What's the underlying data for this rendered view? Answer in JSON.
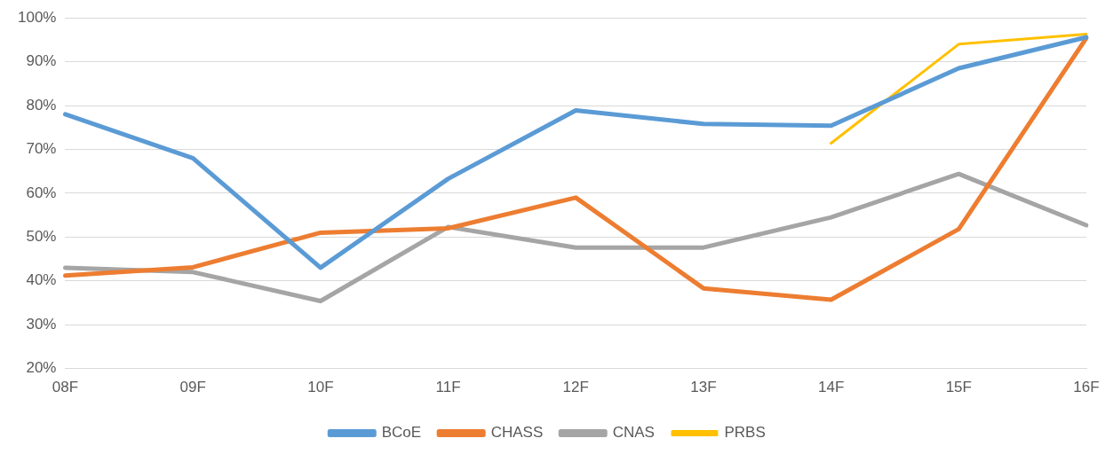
{
  "chart_data": {
    "type": "line",
    "categories": [
      "08F",
      "09F",
      "10F",
      "11F",
      "12F",
      "13F",
      "14F",
      "15F",
      "16F"
    ],
    "series": [
      {
        "name": "BCoE",
        "color": "#5b9bd5",
        "values": [
          78,
          68,
          43,
          63.3,
          78.9,
          75.8,
          75.4,
          88.5,
          95.6
        ]
      },
      {
        "name": "CHASS",
        "color": "#ed7d31",
        "values": [
          41.2,
          43.1,
          51,
          52,
          59,
          38.3,
          35.7,
          51.8,
          95.4
        ]
      },
      {
        "name": "CNAS",
        "color": "#a5a5a5",
        "values": [
          43,
          42,
          35.4,
          52.3,
          47.6,
          47.6,
          54.5,
          64.4,
          52.7
        ]
      },
      {
        "name": "PRBS",
        "color": "#ffc000",
        "values": [
          null,
          null,
          null,
          null,
          null,
          null,
          71.4,
          94,
          96.3
        ]
      }
    ],
    "ylim": [
      20,
      100
    ],
    "yticks": [
      {
        "value": 20,
        "label": "20%"
      },
      {
        "value": 30,
        "label": "30%"
      },
      {
        "value": 40,
        "label": "40%"
      },
      {
        "value": 50,
        "label": "50%"
      },
      {
        "value": 60,
        "label": "60%"
      },
      {
        "value": 70,
        "label": "70%"
      },
      {
        "value": 80,
        "label": "80%"
      },
      {
        "value": 90,
        "label": "90%"
      },
      {
        "value": 100,
        "label": "100%"
      }
    ],
    "grid": "y",
    "legend": "bottom",
    "marker": "none",
    "line_style": "solid"
  }
}
